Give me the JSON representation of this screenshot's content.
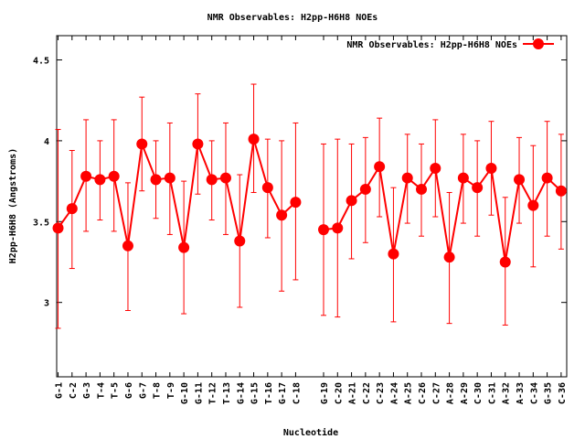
{
  "chart_data": {
    "type": "line",
    "title": "NMR Observables: H2pp-H6H8 NOEs",
    "xlabel": "Nucleotide",
    "ylabel": "H2pp-H6H8 (Angstroms)",
    "ylim": [
      2.54,
      4.65
    ],
    "xlim": [
      0.9,
      37.4
    ],
    "yticks": [
      3,
      3.5,
      4,
      4.5
    ],
    "ytick_labels": [
      "3",
      "3.5",
      "4",
      "4.5"
    ],
    "grid": false,
    "legend": {
      "position": "top-right",
      "entries": [
        "NMR Observables: H2pp-H6H8 NOEs"
      ]
    },
    "colors": {
      "series": "#ff0000",
      "axis": "#000000"
    },
    "series": [
      {
        "name": "NMR Observables: H2pp-H6H8 NOEs",
        "points": [
          {
            "label": "G-1",
            "x": 1,
            "y": 3.46,
            "ylow": 2.84,
            "yhigh": 4.07
          },
          {
            "label": "C-2",
            "x": 2,
            "y": 3.58,
            "ylow": 3.21,
            "yhigh": 3.94
          },
          {
            "label": "G-3",
            "x": 3,
            "y": 3.78,
            "ylow": 3.44,
            "yhigh": 4.13
          },
          {
            "label": "T-4",
            "x": 4,
            "y": 3.76,
            "ylow": 3.51,
            "yhigh": 4.0
          },
          {
            "label": "T-5",
            "x": 5,
            "y": 3.78,
            "ylow": 3.44,
            "yhigh": 4.13
          },
          {
            "label": "G-6",
            "x": 6,
            "y": 3.35,
            "ylow": 2.95,
            "yhigh": 3.74
          },
          {
            "label": "G-7",
            "x": 7,
            "y": 3.98,
            "ylow": 3.69,
            "yhigh": 4.27
          },
          {
            "label": "T-8",
            "x": 8,
            "y": 3.76,
            "ylow": 3.52,
            "yhigh": 4.0
          },
          {
            "label": "T-9",
            "x": 9,
            "y": 3.77,
            "ylow": 3.42,
            "yhigh": 4.11
          },
          {
            "label": "G-10",
            "x": 10,
            "y": 3.34,
            "ylow": 2.93,
            "yhigh": 3.75
          },
          {
            "label": "G-11",
            "x": 11,
            "y": 3.98,
            "ylow": 3.67,
            "yhigh": 4.29
          },
          {
            "label": "T-12",
            "x": 12,
            "y": 3.76,
            "ylow": 3.51,
            "yhigh": 4.0
          },
          {
            "label": "T-13",
            "x": 13,
            "y": 3.77,
            "ylow": 3.42,
            "yhigh": 4.11
          },
          {
            "label": "G-14",
            "x": 14,
            "y": 3.38,
            "ylow": 2.97,
            "yhigh": 3.79
          },
          {
            "label": "G-15",
            "x": 15,
            "y": 4.01,
            "ylow": 3.68,
            "yhigh": 4.35
          },
          {
            "label": "T-16",
            "x": 16,
            "y": 3.71,
            "ylow": 3.4,
            "yhigh": 4.01
          },
          {
            "label": "G-17",
            "x": 17,
            "y": 3.54,
            "ylow": 3.07,
            "yhigh": 4.0
          },
          {
            "label": "C-18",
            "x": 18,
            "y": 3.62,
            "ylow": 3.14,
            "yhigh": 4.11
          },
          {
            "label": "G-19",
            "x": 20,
            "y": 3.45,
            "ylow": 2.92,
            "yhigh": 3.98
          },
          {
            "label": "C-20",
            "x": 21,
            "y": 3.46,
            "ylow": 2.91,
            "yhigh": 4.01
          },
          {
            "label": "A-21",
            "x": 22,
            "y": 3.63,
            "ylow": 3.27,
            "yhigh": 3.98
          },
          {
            "label": "C-22",
            "x": 23,
            "y": 3.7,
            "ylow": 3.37,
            "yhigh": 4.02
          },
          {
            "label": "C-23",
            "x": 24,
            "y": 3.84,
            "ylow": 3.53,
            "yhigh": 4.14
          },
          {
            "label": "A-24",
            "x": 25,
            "y": 3.3,
            "ylow": 2.88,
            "yhigh": 3.71
          },
          {
            "label": "A-25",
            "x": 26,
            "y": 3.77,
            "ylow": 3.49,
            "yhigh": 4.04
          },
          {
            "label": "C-26",
            "x": 27,
            "y": 3.7,
            "ylow": 3.41,
            "yhigh": 3.98
          },
          {
            "label": "C-27",
            "x": 28,
            "y": 3.83,
            "ylow": 3.53,
            "yhigh": 4.13
          },
          {
            "label": "A-28",
            "x": 29,
            "y": 3.28,
            "ylow": 2.87,
            "yhigh": 3.68
          },
          {
            "label": "A-29",
            "x": 30,
            "y": 3.77,
            "ylow": 3.49,
            "yhigh": 4.04
          },
          {
            "label": "C-30",
            "x": 31,
            "y": 3.71,
            "ylow": 3.41,
            "yhigh": 4.0
          },
          {
            "label": "C-31",
            "x": 32,
            "y": 3.83,
            "ylow": 3.54,
            "yhigh": 4.12
          },
          {
            "label": "A-32",
            "x": 33,
            "y": 3.25,
            "ylow": 2.86,
            "yhigh": 3.65
          },
          {
            "label": "A-33",
            "x": 34,
            "y": 3.76,
            "ylow": 3.49,
            "yhigh": 4.02
          },
          {
            "label": "C-34",
            "x": 35,
            "y": 3.6,
            "ylow": 3.22,
            "yhigh": 3.97
          },
          {
            "label": "G-35",
            "x": 36,
            "y": 3.77,
            "ylow": 3.41,
            "yhigh": 4.12
          },
          {
            "label": "C-36",
            "x": 37,
            "y": 3.69,
            "ylow": 3.33,
            "yhigh": 4.04
          }
        ]
      }
    ]
  }
}
